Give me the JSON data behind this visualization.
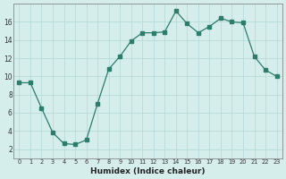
{
  "x": [
    0,
    1,
    2,
    3,
    4,
    5,
    6,
    7,
    8,
    9,
    10,
    11,
    12,
    13,
    14,
    15,
    16,
    17,
    18,
    19,
    20,
    21,
    22,
    23
  ],
  "y": [
    9.3,
    9.3,
    6.5,
    3.8,
    2.6,
    2.5,
    3.0,
    7.0,
    10.8,
    12.2,
    13.9,
    14.8,
    14.8,
    14.9,
    17.2,
    15.8,
    14.8,
    15.5,
    16.4,
    16.0,
    15.9,
    12.2,
    10.7,
    10.0
  ],
  "xlabel": "Humidex (Indice chaleur)",
  "ylim": [
    1,
    18
  ],
  "xlim": [
    -0.5,
    23.5
  ],
  "yticks": [
    2,
    4,
    6,
    8,
    10,
    12,
    14,
    16
  ],
  "xticks": [
    0,
    1,
    2,
    3,
    4,
    5,
    6,
    7,
    8,
    9,
    10,
    11,
    12,
    13,
    14,
    15,
    16,
    17,
    18,
    19,
    20,
    21,
    22,
    23
  ],
  "line_color": "#2d7d6b",
  "marker": "s",
  "marker_size": 2.5,
  "bg_color": "#d5eeec",
  "grid_color": "#b8dbd8",
  "axis_color": "#888888"
}
